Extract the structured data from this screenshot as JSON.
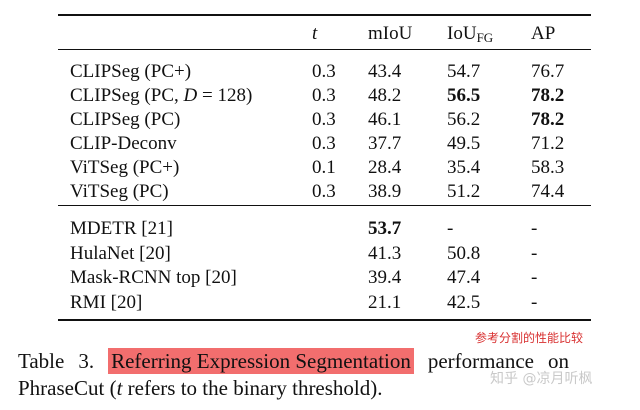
{
  "table": {
    "headers": {
      "t": "t",
      "miou": "mIoU",
      "iou_fg_main": "IoU",
      "iou_fg_sub": "FG",
      "ap": "AP"
    },
    "group1": [
      {
        "method": "CLIPSeg (PC+)",
        "t": "0.3",
        "miou": "43.4",
        "iou_fg": "54.7",
        "ap": "76.7"
      },
      {
        "method_pre": "CLIPSeg (PC, ",
        "method_var": "D",
        "method_post": " = 128)",
        "t": "0.3",
        "miou": "48.2",
        "iou_fg": "56.5",
        "ap": "78.2"
      },
      {
        "method": "CLIPSeg (PC)",
        "t": "0.3",
        "miou": "46.1",
        "iou_fg": "56.2",
        "ap": "78.2"
      },
      {
        "method": "CLIP-Deconv",
        "t": "0.3",
        "miou": "37.7",
        "iou_fg": "49.5",
        "ap": "71.2"
      },
      {
        "method": "ViTSeg (PC+)",
        "t": "0.1",
        "miou": "28.4",
        "iou_fg": "35.4",
        "ap": "58.3"
      },
      {
        "method": "ViTSeg (PC)",
        "t": "0.3",
        "miou": "38.9",
        "iou_fg": "51.2",
        "ap": "74.4"
      }
    ],
    "group2": [
      {
        "method": "MDETR [21]",
        "t": "",
        "miou": "53.7",
        "iou_fg": "-",
        "ap": "-"
      },
      {
        "method": "HulaNet [20]",
        "t": "",
        "miou": "41.3",
        "iou_fg": "50.8",
        "ap": "-"
      },
      {
        "method": "Mask-RCNN top [20]",
        "t": "",
        "miou": "39.4",
        "iou_fg": "47.4",
        "ap": "-"
      },
      {
        "method": "RMI [20]",
        "t": "",
        "miou": "21.1",
        "iou_fg": "42.5",
        "ap": "-"
      }
    ]
  },
  "caption": {
    "table": "Table",
    "number": "3.",
    "highlight": "Referring Expression Segmentation",
    "rest1": "performance",
    "rest2": "on",
    "line2_a": "PhraseCut (",
    "line2_var": "t",
    "line2_b": " refers to the binary threshold)."
  },
  "annotation": "参考分割的性能比较",
  "watermark": "知乎 @凉月听枫"
}
